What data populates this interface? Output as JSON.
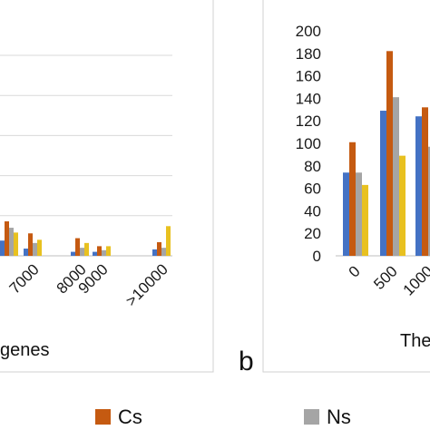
{
  "colors": {
    "series_1": "#4472c4",
    "series_2": "#c55a11",
    "series_3": "#a5a5a5",
    "series_4": "#e8c120"
  },
  "panel_letter": "b",
  "legend": [
    {
      "label": "Cs",
      "color": "#c55a11"
    },
    {
      "label": "Ns",
      "color": "#a5a5a5"
    }
  ],
  "chart_data": [
    {
      "type": "bar",
      "panel": "left",
      "xlabel": "genes",
      "categories": [
        "",
        "7000",
        "8000",
        "9000",
        ">10000"
      ],
      "series": [
        {
          "values": [
            19,
            9,
            5,
            5,
            8
          ]
        },
        {
          "values": [
            43,
            28,
            22,
            12,
            17
          ]
        },
        {
          "values": [
            35,
            16,
            10,
            7,
            10
          ]
        },
        {
          "values": [
            29,
            20,
            16,
            12,
            37
          ]
        }
      ],
      "ylim": [
        0,
        250
      ],
      "grid": true
    },
    {
      "type": "bar",
      "panel": "right",
      "xlabel": "The",
      "categories": [
        "0",
        "500",
        "1000"
      ],
      "series": [
        {
          "values": [
            74,
            129,
            124
          ]
        },
        {
          "values": [
            101,
            182,
            132
          ]
        },
        {
          "values": [
            74,
            141,
            97
          ]
        },
        {
          "values": [
            63,
            89,
            0
          ]
        }
      ],
      "yticks": [
        "0",
        "20",
        "40",
        "60",
        "80",
        "100",
        "120",
        "140",
        "160",
        "180",
        "200"
      ],
      "ylim": [
        0,
        200
      ],
      "grid": false
    }
  ]
}
